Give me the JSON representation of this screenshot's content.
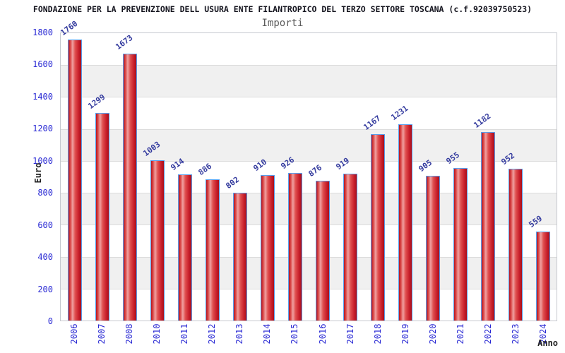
{
  "header": {
    "title": "FONDAZIONE PER LA PREVENZIONE DELL USURA ENTE FILANTROPICO DEL TERZO SETTORE TOSCANA (c.f.92039750523)",
    "subtitle": "Importi"
  },
  "chart_data": {
    "type": "bar",
    "title": "Importi",
    "categories": [
      "2006",
      "2007",
      "2008",
      "2010",
      "2011",
      "2012",
      "2013",
      "2014",
      "2015",
      "2016",
      "2017",
      "2018",
      "2019",
      "2020",
      "2021",
      "2022",
      "2023",
      "2024"
    ],
    "values": [
      1760,
      1299,
      1673,
      1003,
      914,
      886,
      802,
      910,
      926,
      876,
      919,
      1167,
      1231,
      905,
      955,
      1182,
      952,
      559
    ],
    "xlabel": "Anno",
    "ylabel": "Euro",
    "ylim": [
      0,
      1800
    ],
    "ytick_step": 200,
    "yticks": [
      0,
      200,
      400,
      600,
      800,
      1000,
      1200,
      1400,
      1600,
      1800
    ],
    "grid": "horizontal gridlines with alternating gray bands every 200",
    "legend_position": "none",
    "bar_value_labels_rotated": true,
    "colors": {
      "bar_fill": "#d62b2b",
      "bar_highlight": "#f0a0a0",
      "bar_border": "#58a0ee",
      "axis_tick_blue": "#2a2ad4",
      "value_label_navy": "#333a9e",
      "band_gray": "#f0f0f0",
      "axis_title_dark": "#222222",
      "title_color": "#14141e",
      "subtitle_color": "#5a5a5a"
    }
  }
}
